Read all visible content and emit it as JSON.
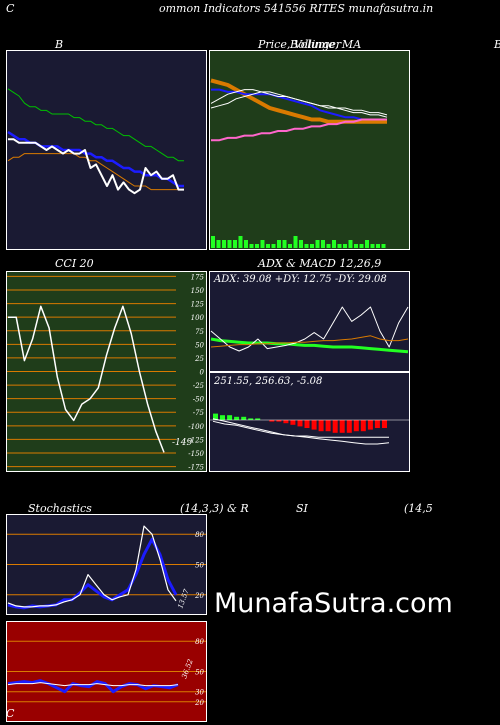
{
  "header": {
    "left_char": "C",
    "title": "ommon  Indicators 541556  RITES munafasutra.in"
  },
  "labels": {
    "b": "B",
    "price": "Price,  Volume,  MA",
    "price_overlay": "Bollinger",
    "right_edge": "B",
    "cci": "CCI 20",
    "adx_macd": "ADX  & MACD 12,26,9",
    "stoch": "Stochastics",
    "stoch_params": "(14,3,3) & R",
    "si": "SI",
    "si_params": "(14,5",
    "footer_left": "C"
  },
  "watermark": "MunafaSutra.com",
  "colors": {
    "navy": "#1a1a33",
    "green_bg": "#1f3d1a",
    "red_bg": "#990000",
    "orange": "#d97a00",
    "blue": "#1c1cff",
    "green_line": "#00c000",
    "bright_green": "#22ff22",
    "white": "#ffffff"
  },
  "chart_data": [
    {
      "name": "bollinger",
      "type": "line",
      "series": [
        {
          "name": "",
          "color": "#00c000",
          "values": [
            62,
            61,
            60,
            58,
            57,
            57,
            56,
            56,
            55,
            55,
            55,
            55,
            54,
            54,
            53,
            53,
            52,
            52,
            51,
            51,
            50,
            49,
            49,
            48,
            47,
            46,
            46,
            45,
            44,
            43,
            43,
            42,
            42
          ]
        },
        {
          "name": "",
          "color": "#1c1cff",
          "values": [
            50,
            49,
            48,
            48,
            47,
            47,
            46,
            46,
            46,
            46,
            45,
            45,
            45,
            45,
            44,
            44,
            43,
            43,
            42,
            42,
            41,
            40,
            40,
            39,
            39,
            38,
            38,
            38,
            37,
            37,
            36,
            35,
            35
          ]
        },
        {
          "name": "",
          "color": "#d97a00",
          "values": [
            42,
            43,
            43,
            44,
            44,
            44,
            44,
            44,
            44,
            44,
            44,
            44,
            44,
            43,
            43,
            42,
            42,
            41,
            40,
            39,
            38,
            37,
            36,
            35,
            35,
            35,
            34,
            34,
            34,
            34,
            34,
            34,
            34
          ]
        },
        {
          "name": "",
          "color": "#ffffff",
          "values": [
            48,
            48,
            47,
            47,
            47,
            47,
            46,
            45,
            46,
            45,
            44,
            45,
            44,
            44,
            45,
            40,
            41,
            38,
            35,
            38,
            34,
            36,
            34,
            33,
            34,
            40,
            38,
            39,
            37,
            37,
            38,
            34,
            34
          ]
        }
      ],
      "ylim": [
        20,
        70
      ]
    },
    {
      "name": "price_ma",
      "type": "line",
      "series": [
        {
          "name": "",
          "color": "#d97a00",
          "values": [
            52,
            51,
            50,
            48,
            46,
            44,
            42,
            40,
            39,
            38,
            37,
            36,
            35,
            35,
            34,
            34,
            34,
            34,
            34,
            34,
            34,
            34
          ]
        },
        {
          "name": "",
          "color": "#1c1cff",
          "values": [
            48,
            48,
            47,
            47,
            46,
            46,
            46,
            46,
            45,
            44,
            43,
            42,
            41,
            39,
            38,
            37,
            36,
            36,
            35,
            35,
            35,
            35
          ]
        },
        {
          "name": "",
          "color": "#ff66cc",
          "values": [
            26,
            26,
            27,
            27,
            28,
            28,
            29,
            29,
            30,
            30,
            31,
            31,
            32,
            32,
            33,
            33,
            34,
            34,
            35,
            35,
            35,
            35
          ]
        },
        {
          "name": "",
          "color": "#ffffff",
          "values": [
            40,
            41,
            42,
            44,
            45,
            46,
            47,
            47,
            46,
            45,
            44,
            43,
            42,
            41,
            41,
            40,
            40,
            39,
            39,
            38,
            38,
            37
          ]
        },
        {
          "name": "",
          "color": "#ffffff",
          "values": [
            42,
            44,
            46,
            47,
            48,
            48,
            47,
            46,
            45,
            45,
            44,
            43,
            42,
            41,
            40,
            40,
            39,
            38,
            38,
            37,
            37,
            36
          ]
        }
      ],
      "volume": [
        3,
        2,
        2,
        2,
        2,
        3,
        2,
        1,
        1,
        2,
        1,
        1,
        2,
        2,
        1,
        3,
        2,
        1,
        1,
        2,
        2,
        1,
        2,
        1,
        1,
        2,
        1,
        1,
        2,
        1,
        1,
        1
      ],
      "ylim": [
        0,
        60
      ]
    },
    {
      "name": "cci",
      "type": "line",
      "ticks": [
        175,
        150,
        125,
        100,
        75,
        50,
        25,
        0,
        -25,
        -50,
        -75,
        -100,
        -125,
        -150,
        -175
      ],
      "values": [
        100,
        100,
        20,
        60,
        120,
        80,
        -10,
        -70,
        -90,
        -60,
        -50,
        -30,
        30,
        80,
        120,
        70,
        0,
        -60,
        -110,
        -149
      ],
      "last_label": "-149",
      "ylim": [
        -185,
        185
      ]
    },
    {
      "name": "adx",
      "type": "line",
      "readout": "ADX: 39.08  +DY: 12.75  -DY: 29.08",
      "series": [
        {
          "name": "",
          "color": "#22ff22",
          "values": [
            40,
            38,
            37,
            36,
            35,
            35,
            35,
            34,
            34,
            33,
            32,
            32,
            31,
            30,
            30,
            30,
            29,
            28,
            27,
            26,
            25,
            24
          ]
        },
        {
          "name": "",
          "color": "#ffffff",
          "values": [
            50,
            40,
            30,
            25,
            30,
            40,
            28,
            30,
            32,
            35,
            40,
            48,
            40,
            60,
            80,
            62,
            70,
            80,
            50,
            30,
            60,
            80
          ]
        },
        {
          "name": "",
          "color": "#d97a00",
          "values": [
            30,
            31,
            32,
            33,
            33,
            34,
            34,
            35,
            35,
            36,
            36,
            37,
            38,
            38,
            39,
            40,
            42,
            44,
            40,
            38,
            38,
            40
          ]
        }
      ],
      "ylim": [
        0,
        100
      ]
    },
    {
      "name": "macd",
      "type": "bar",
      "readout": "251.55,  256.63,  -5.08",
      "histogram": [
        4,
        3,
        3,
        2,
        2,
        1,
        1,
        0,
        -1,
        -1,
        -2,
        -3,
        -4,
        -5,
        -6,
        -7,
        -7,
        -8,
        -8,
        -8,
        -7,
        -7,
        -6,
        -5,
        -5
      ],
      "series": [
        {
          "name": "",
          "color": "#ffffff",
          "values": [
            270,
            268,
            266,
            264,
            262,
            260,
            258,
            257,
            256,
            255,
            254,
            253,
            252,
            251,
            251,
            252
          ]
        },
        {
          "name": "",
          "color": "#ffffff",
          "values": [
            268,
            266,
            265,
            263,
            261,
            259,
            258,
            257,
            257,
            256,
            256,
            256,
            256,
            256,
            256,
            256
          ]
        }
      ],
      "ylim": [
        230,
        290
      ]
    },
    {
      "name": "stochastics",
      "type": "line",
      "ticks": [
        80,
        50,
        20
      ],
      "last_label": "13.57",
      "series": [
        {
          "name": "",
          "color": "#1c1cff",
          "values": [
            10,
            8,
            7,
            9,
            8,
            9,
            10,
            15,
            15,
            22,
            30,
            24,
            18,
            15,
            20,
            25,
            40,
            60,
            75,
            60,
            35,
            20
          ]
        },
        {
          "name": "",
          "color": "#ffffff",
          "values": [
            12,
            9,
            8,
            8,
            9,
            9,
            10,
            13,
            15,
            20,
            40,
            30,
            20,
            15,
            18,
            20,
            45,
            88,
            80,
            55,
            25,
            14
          ]
        }
      ],
      "ylim": [
        0,
        100
      ]
    },
    {
      "name": "rsi",
      "type": "line",
      "ticks": [
        80,
        50,
        30,
        20
      ],
      "last_label": "36.52",
      "series": [
        {
          "name": "",
          "color": "#1c1cff",
          "values": [
            38,
            39,
            40,
            39,
            41,
            38,
            34,
            30,
            38,
            36,
            35,
            40,
            38,
            30,
            35,
            38,
            37,
            33,
            36,
            35,
            34,
            37
          ]
        },
        {
          "name": "",
          "color": "#ffffff",
          "values": [
            37,
            38,
            38,
            38,
            39,
            38,
            37,
            36,
            37,
            37,
            37,
            38,
            37,
            36,
            36,
            37,
            37,
            36,
            36,
            36,
            36,
            37
          ]
        }
      ],
      "ylim": [
        0,
        100
      ]
    }
  ]
}
